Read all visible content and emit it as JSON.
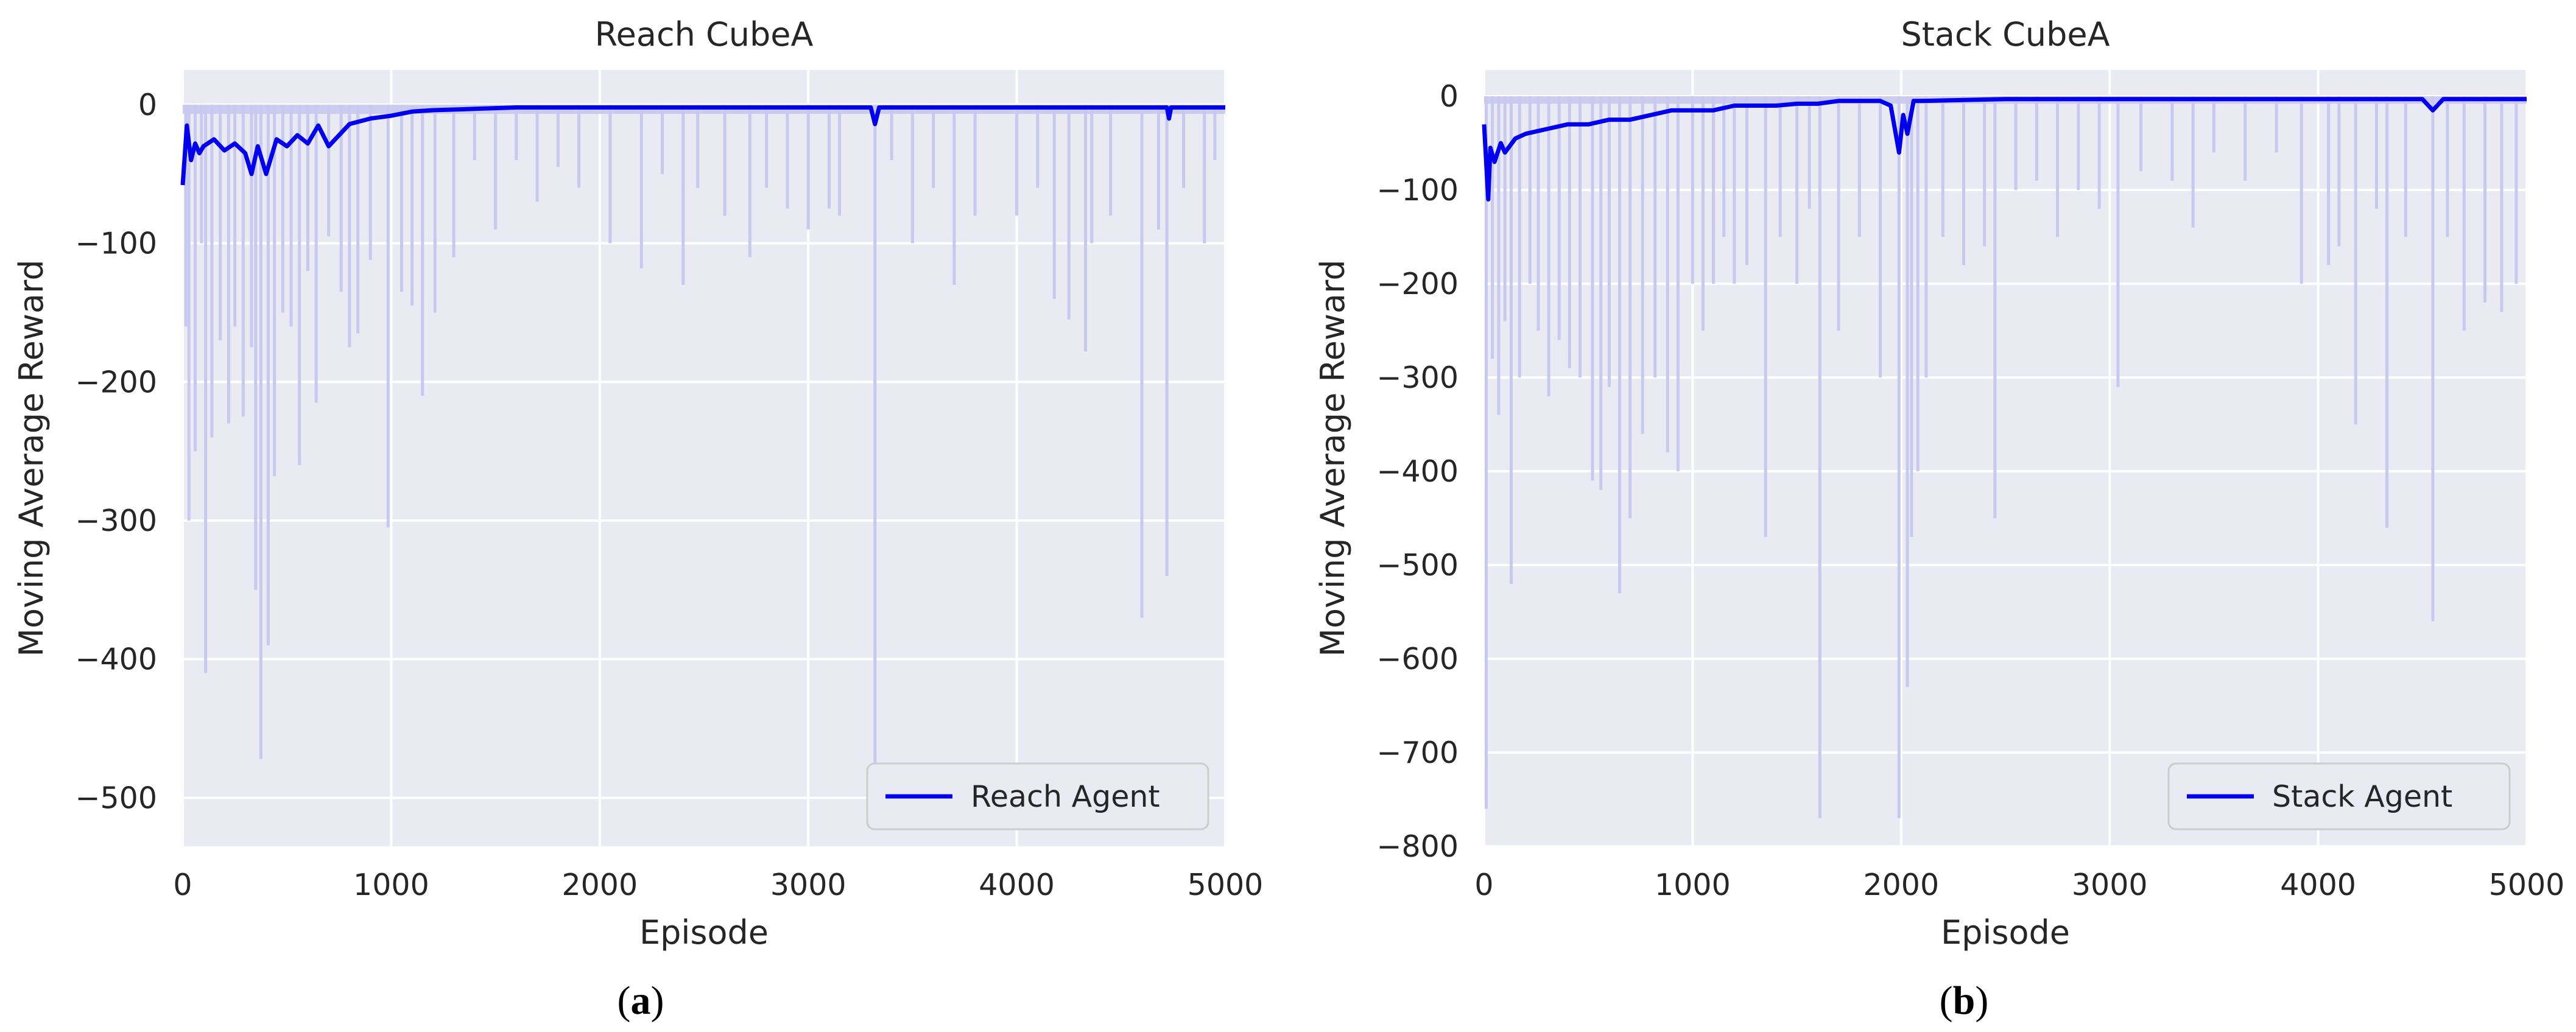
{
  "colors": {
    "plot_bg": "#EAEAF2",
    "grid": "#FFFFFF",
    "line": "#0000EE",
    "raw": "#C8C8F0",
    "text": "#262626"
  },
  "chart_data": [
    {
      "type": "line",
      "title": "Reach CubeA",
      "xlabel": "Episode",
      "ylabel": "Moving Average Reward",
      "xlim": [
        0,
        5000
      ],
      "ylim": [
        -535,
        25
      ],
      "xticks": [
        0,
        1000,
        2000,
        3000,
        4000,
        5000
      ],
      "yticks": [
        0,
        -100,
        -200,
        -300,
        -400,
        -500
      ],
      "xtick_labels": [
        "0",
        "1000",
        "2000",
        "3000",
        "4000",
        "5000"
      ],
      "ytick_labels": [
        "0",
        "−100",
        "−200",
        "−300",
        "−400",
        "−500"
      ],
      "grid": true,
      "legend": {
        "position": "bottom-right",
        "entries": [
          "Reach Agent"
        ]
      },
      "caption_letter": "a",
      "series": [
        {
          "name": "Reach Agent",
          "role": "moving_average",
          "x": [
            0,
            20,
            40,
            60,
            80,
            100,
            150,
            200,
            250,
            300,
            330,
            360,
            400,
            450,
            500,
            550,
            600,
            650,
            700,
            800,
            900,
            1000,
            1100,
            1200,
            1400,
            1600,
            1800,
            2000,
            2500,
            3000,
            3300,
            3320,
            3340,
            3500,
            4000,
            4500,
            4720,
            4730,
            4740,
            5000
          ],
          "y": [
            -58,
            -15,
            -40,
            -28,
            -35,
            -30,
            -25,
            -33,
            -28,
            -35,
            -50,
            -30,
            -50,
            -25,
            -30,
            -22,
            -28,
            -15,
            -30,
            -14,
            -10,
            -8,
            -5,
            -4,
            -3,
            -2,
            -2,
            -2,
            -2,
            -2,
            -2,
            -14,
            -2,
            -2,
            -2,
            -2,
            -2,
            -10,
            -2,
            -2
          ]
        },
        {
          "name": "",
          "role": "raw_episode_reward",
          "spikes": [
            [
              15,
              -160
            ],
            [
              30,
              -300
            ],
            [
              60,
              -250
            ],
            [
              90,
              -100
            ],
            [
              110,
              -410
            ],
            [
              140,
              -240
            ],
            [
              180,
              -170
            ],
            [
              220,
              -230
            ],
            [
              250,
              -160
            ],
            [
              290,
              -225
            ],
            [
              330,
              -175
            ],
            [
              350,
              -350
            ],
            [
              375,
              -472
            ],
            [
              410,
              -390
            ],
            [
              440,
              -268
            ],
            [
              480,
              -150
            ],
            [
              520,
              -160
            ],
            [
              560,
              -260
            ],
            [
              600,
              -120
            ],
            [
              640,
              -215
            ],
            [
              700,
              -95
            ],
            [
              760,
              -135
            ],
            [
              800,
              -175
            ],
            [
              840,
              -165
            ],
            [
              900,
              -112
            ],
            [
              985,
              -305
            ],
            [
              1050,
              -135
            ],
            [
              1100,
              -145
            ],
            [
              1150,
              -210
            ],
            [
              1210,
              -150
            ],
            [
              1300,
              -110
            ],
            [
              1400,
              -40
            ],
            [
              1500,
              -90
            ],
            [
              1600,
              -40
            ],
            [
              1700,
              -70
            ],
            [
              1800,
              -45
            ],
            [
              1900,
              -60
            ],
            [
              2050,
              -100
            ],
            [
              2200,
              -118
            ],
            [
              2300,
              -50
            ],
            [
              2400,
              -130
            ],
            [
              2470,
              -60
            ],
            [
              2600,
              -80
            ],
            [
              2720,
              -110
            ],
            [
              2800,
              -60
            ],
            [
              2900,
              -75
            ],
            [
              3000,
              -90
            ],
            [
              3100,
              -75
            ],
            [
              3150,
              -80
            ],
            [
              3320,
              -505
            ],
            [
              3400,
              -40
            ],
            [
              3500,
              -100
            ],
            [
              3600,
              -60
            ],
            [
              3700,
              -130
            ],
            [
              3800,
              -80
            ],
            [
              4000,
              -80
            ],
            [
              4100,
              -60
            ],
            [
              4180,
              -140
            ],
            [
              4250,
              -155
            ],
            [
              4330,
              -178
            ],
            [
              4360,
              -100
            ],
            [
              4450,
              -80
            ],
            [
              4600,
              -370
            ],
            [
              4680,
              -90
            ],
            [
              4720,
              -340
            ],
            [
              4800,
              -60
            ],
            [
              4900,
              -100
            ],
            [
              4950,
              -40
            ]
          ]
        }
      ]
    },
    {
      "type": "line",
      "title": "Stack CubeA",
      "xlabel": "Episode",
      "ylabel": "Moving Average Reward",
      "xlim": [
        0,
        5000
      ],
      "ylim": [
        -800,
        28
      ],
      "xticks": [
        0,
        1000,
        2000,
        3000,
        4000,
        5000
      ],
      "yticks": [
        0,
        -100,
        -200,
        -300,
        -400,
        -500,
        -600,
        -700,
        -800
      ],
      "xtick_labels": [
        "0",
        "1000",
        "2000",
        "3000",
        "4000",
        "5000"
      ],
      "ytick_labels": [
        "0",
        "−100",
        "−200",
        "−300",
        "−400",
        "−500",
        "−600",
        "−700",
        "−800"
      ],
      "grid": true,
      "legend": {
        "position": "bottom-right",
        "entries": [
          "Stack Agent"
        ]
      },
      "caption_letter": "b",
      "series": [
        {
          "name": "Stack Agent",
          "role": "moving_average",
          "x": [
            0,
            20,
            30,
            50,
            80,
            100,
            150,
            200,
            300,
            400,
            500,
            600,
            700,
            800,
            900,
            1000,
            1100,
            1200,
            1400,
            1500,
            1600,
            1700,
            1800,
            1900,
            1950,
            1990,
            2010,
            2030,
            2060,
            2100,
            2300,
            2500,
            3000,
            3500,
            4000,
            4500,
            4550,
            4600,
            5000
          ],
          "y": [
            -30,
            -110,
            -55,
            -70,
            -50,
            -60,
            -45,
            -40,
            -35,
            -30,
            -30,
            -25,
            -25,
            -20,
            -15,
            -15,
            -15,
            -10,
            -10,
            -8,
            -8,
            -5,
            -5,
            -5,
            -10,
            -60,
            -20,
            -40,
            -5,
            -5,
            -4,
            -3,
            -3,
            -3,
            -3,
            -3,
            -15,
            -3,
            -3
          ]
        },
        {
          "name": "",
          "role": "raw_episode_reward",
          "spikes": [
            [
              10,
              -760
            ],
            [
              40,
              -280
            ],
            [
              70,
              -340
            ],
            [
              100,
              -240
            ],
            [
              130,
              -520
            ],
            [
              170,
              -300
            ],
            [
              220,
              -200
            ],
            [
              260,
              -250
            ],
            [
              310,
              -320
            ],
            [
              360,
              -260
            ],
            [
              410,
              -290
            ],
            [
              460,
              -300
            ],
            [
              520,
              -410
            ],
            [
              560,
              -420
            ],
            [
              600,
              -310
            ],
            [
              650,
              -530
            ],
            [
              700,
              -450
            ],
            [
              760,
              -360
            ],
            [
              820,
              -300
            ],
            [
              880,
              -380
            ],
            [
              930,
              -400
            ],
            [
              1000,
              -200
            ],
            [
              1050,
              -250
            ],
            [
              1100,
              -200
            ],
            [
              1150,
              -150
            ],
            [
              1200,
              -200
            ],
            [
              1260,
              -180
            ],
            [
              1350,
              -470
            ],
            [
              1420,
              -150
            ],
            [
              1500,
              -200
            ],
            [
              1560,
              -120
            ],
            [
              1610,
              -770
            ],
            [
              1700,
              -250
            ],
            [
              1800,
              -150
            ],
            [
              1900,
              -300
            ],
            [
              1990,
              -770
            ],
            [
              2030,
              -630
            ],
            [
              2050,
              -470
            ],
            [
              2080,
              -400
            ],
            [
              2120,
              -300
            ],
            [
              2200,
              -150
            ],
            [
              2300,
              -180
            ],
            [
              2400,
              -160
            ],
            [
              2450,
              -450
            ],
            [
              2550,
              -100
            ],
            [
              2650,
              -90
            ],
            [
              2750,
              -150
            ],
            [
              2850,
              -100
            ],
            [
              2950,
              -120
            ],
            [
              3040,
              -310
            ],
            [
              3150,
              -80
            ],
            [
              3300,
              -90
            ],
            [
              3400,
              -140
            ],
            [
              3500,
              -60
            ],
            [
              3650,
              -90
            ],
            [
              3800,
              -60
            ],
            [
              3920,
              -200
            ],
            [
              4050,
              -180
            ],
            [
              4100,
              -160
            ],
            [
              4180,
              -350
            ],
            [
              4280,
              -120
            ],
            [
              4330,
              -460
            ],
            [
              4420,
              -150
            ],
            [
              4550,
              -560
            ],
            [
              4620,
              -150
            ],
            [
              4700,
              -250
            ],
            [
              4800,
              -220
            ],
            [
              4880,
              -230
            ],
            [
              4950,
              -200
            ]
          ]
        }
      ]
    }
  ]
}
